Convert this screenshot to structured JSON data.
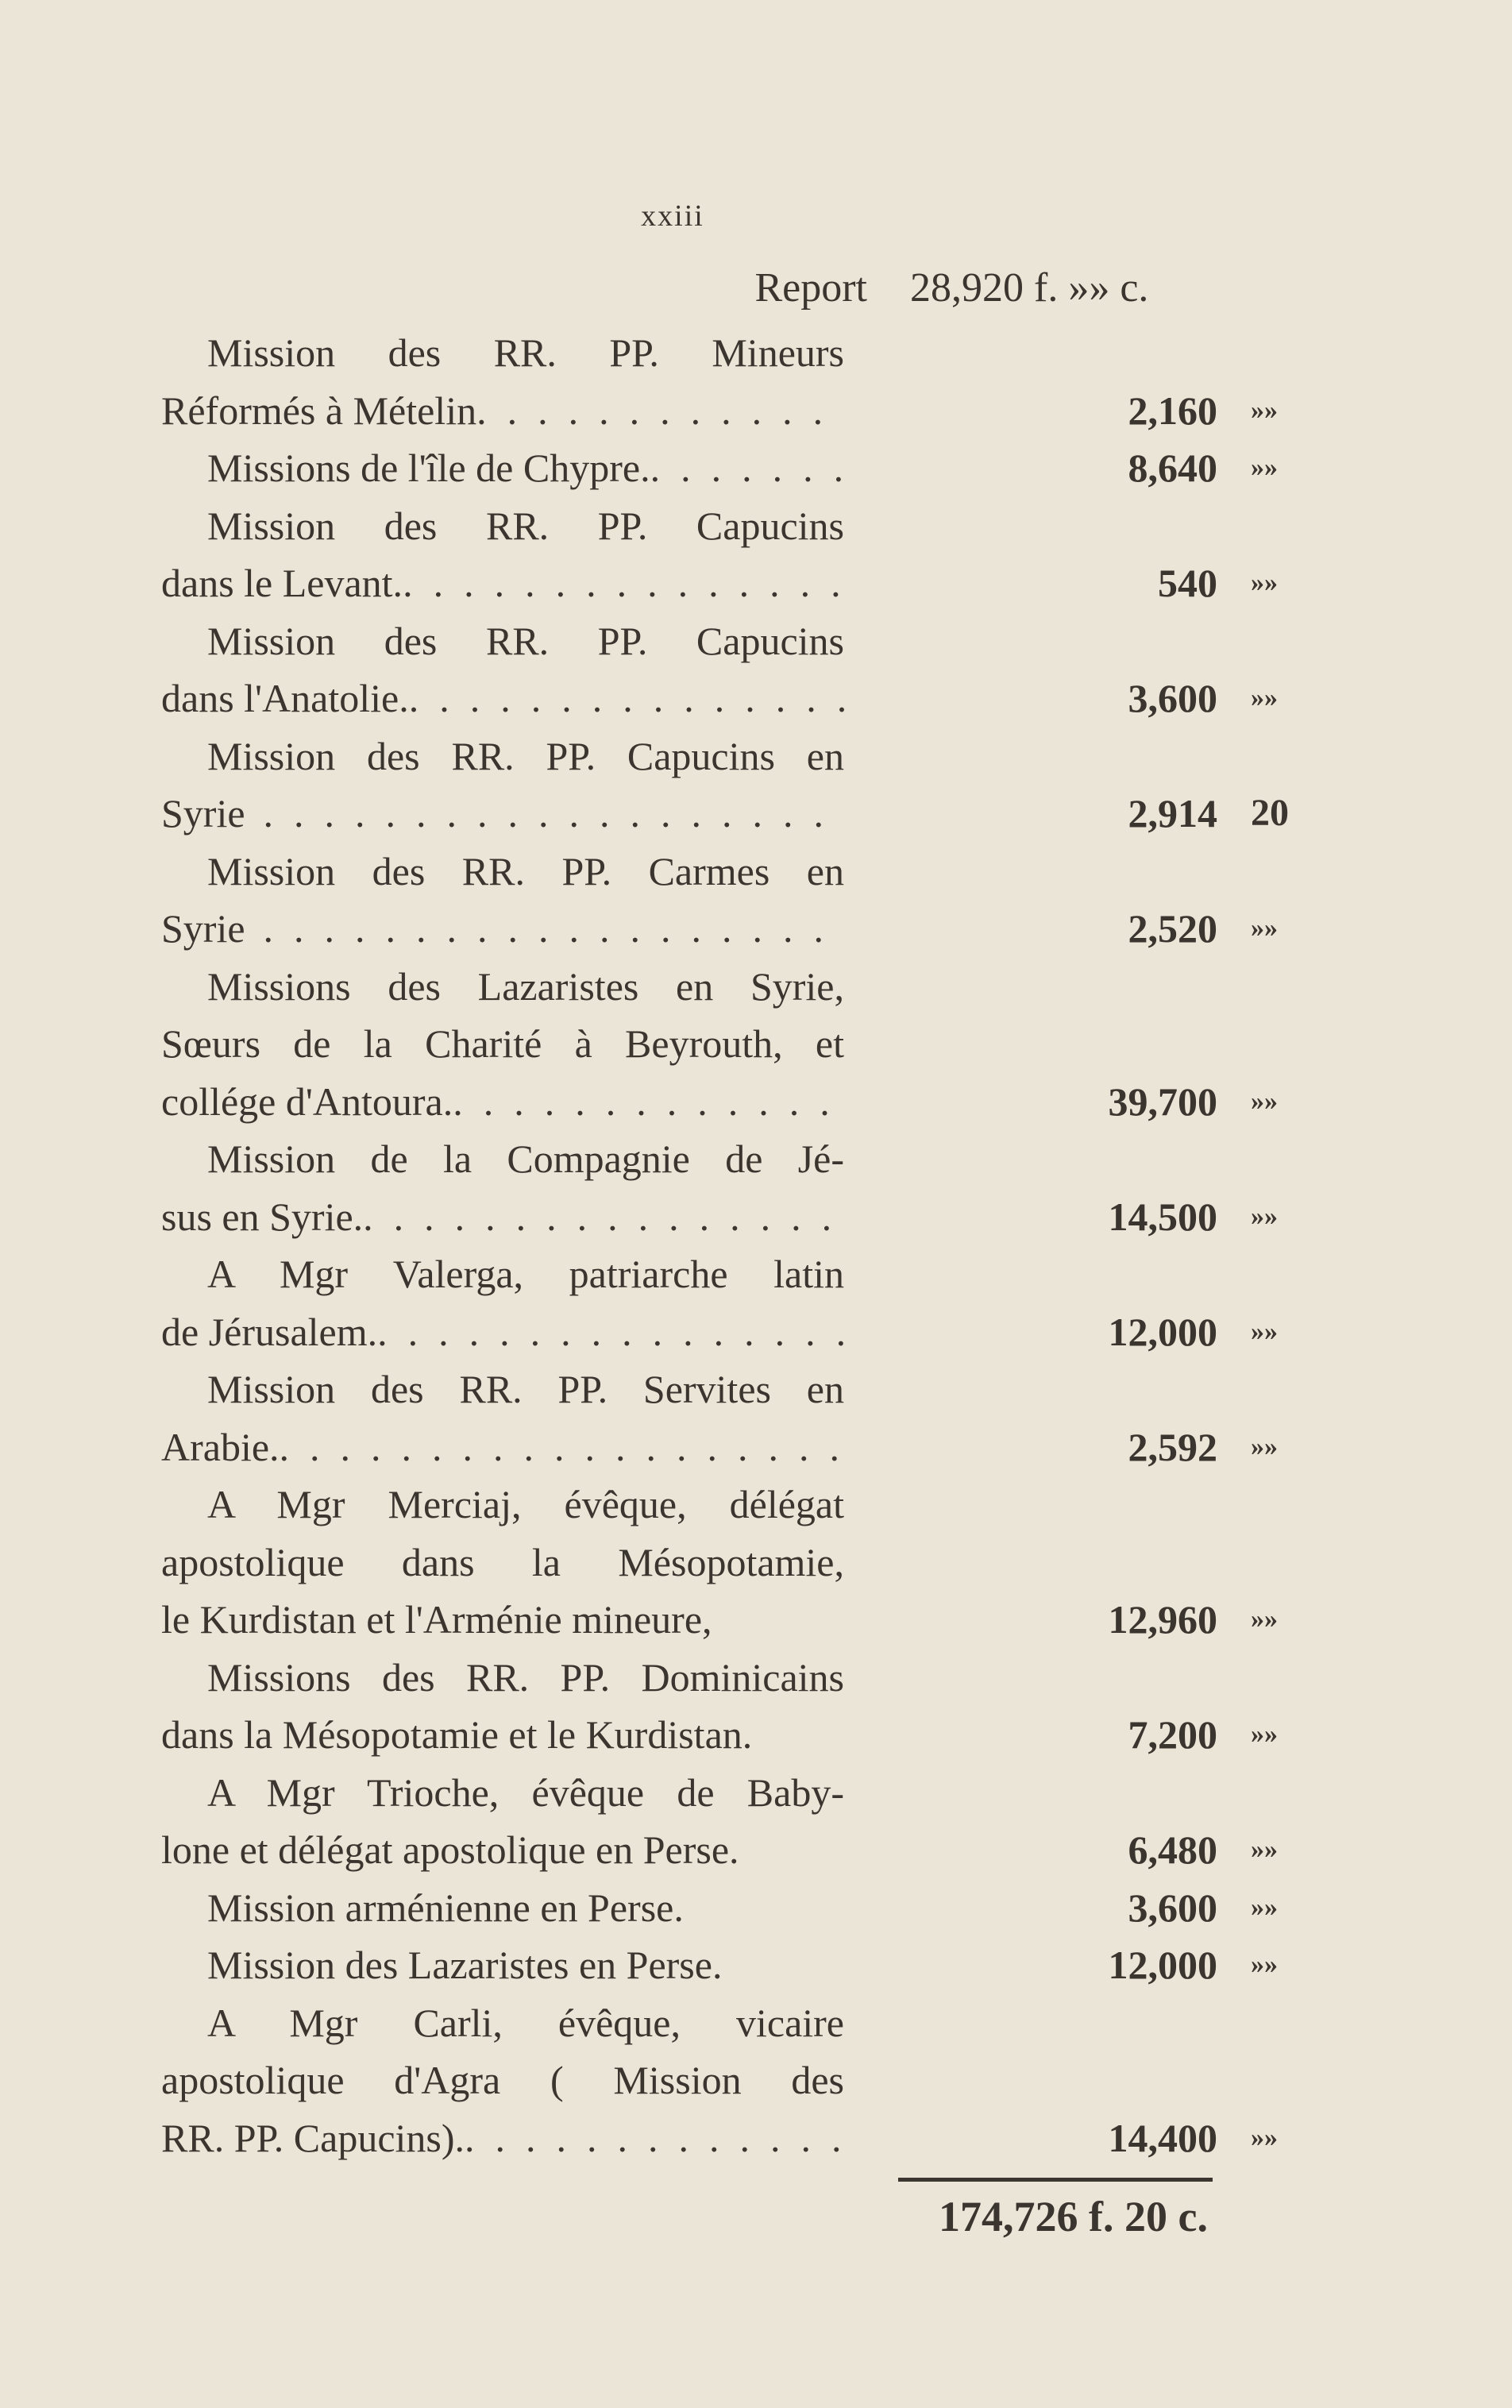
{
  "page_number": "xxiii",
  "report": {
    "label": "Report",
    "amount": "28,920 f. »» c."
  },
  "entries": [
    {
      "lines": [
        "Mission des RR. PP. Mineurs",
        "Réformés à Mételin"
      ],
      "amount": "2,160",
      "cents": "»»",
      "leader": true
    },
    {
      "lines": [
        "Missions de l'île de Chypre."
      ],
      "amount": "8,640",
      "cents": "»»",
      "leader": true
    },
    {
      "lines": [
        "Mission des RR. PP. Capucins",
        "dans le Levant."
      ],
      "amount": "540",
      "cents": "»»",
      "leader": true
    },
    {
      "lines": [
        "Mission des RR. PP. Capucins",
        "dans l'Anatolie."
      ],
      "amount": "3,600",
      "cents": "»»",
      "leader": true
    },
    {
      "lines": [
        "Mission des RR. PP. Capucins en",
        "Syrie"
      ],
      "amount": "2,914",
      "cents": "20",
      "leader": true
    },
    {
      "lines": [
        "Mission des RR. PP. Carmes en",
        "Syrie"
      ],
      "amount": "2,520",
      "cents": "»»",
      "leader": true
    },
    {
      "lines": [
        "Missions des Lazaristes en Syrie,",
        "Sœurs de la Charité à Beyrouth, et",
        "collége d'Antoura."
      ],
      "amount": "39,700",
      "cents": "»»",
      "leader": true
    },
    {
      "lines": [
        "Mission de la Compagnie de Jé-",
        "sus en Syrie."
      ],
      "amount": "14,500",
      "cents": "»»",
      "leader": true
    },
    {
      "lines": [
        "A Mgr Valerga, patriarche latin",
        "de Jérusalem."
      ],
      "amount": "12,000",
      "cents": "»»",
      "leader": true
    },
    {
      "lines": [
        "Mission des RR. PP. Servites en",
        "Arabie."
      ],
      "amount": "2,592",
      "cents": "»»",
      "leader": true
    },
    {
      "lines": [
        "A Mgr Merciaj, évêque, délégat",
        "apostolique dans la Mésopotamie,",
        "le Kurdistan et l'Arménie mineure,"
      ],
      "amount": "12,960",
      "cents": "»»",
      "leader": false
    },
    {
      "lines": [
        "Missions des RR. PP. Dominicains",
        "dans la Mésopotamie et le Kurdistan."
      ],
      "amount": "7,200",
      "cents": "»»",
      "leader": false
    },
    {
      "lines": [
        "A Mgr Trioche, évêque de Baby-",
        "lone et délégat apostolique en Perse."
      ],
      "amount": "6,480",
      "cents": "»»",
      "leader": false
    },
    {
      "lines": [
        "Mission arménienne en Perse."
      ],
      "amount": "3,600",
      "cents": "»»",
      "leader": false
    },
    {
      "lines": [
        "Mission des Lazaristes en Perse."
      ],
      "amount": "12,000",
      "cents": "»»",
      "leader": false
    },
    {
      "lines": [
        "A Mgr Carli, évêque, vicaire",
        "apostolique d'Agra ( Mission des",
        "RR. PP. Capucins)."
      ],
      "amount": "14,400",
      "cents": "»»",
      "leader": true
    }
  ],
  "total": "174,726 f. 20 c.",
  "colors": {
    "paper": "#ebe5d7",
    "ink": "#3b3530"
  }
}
